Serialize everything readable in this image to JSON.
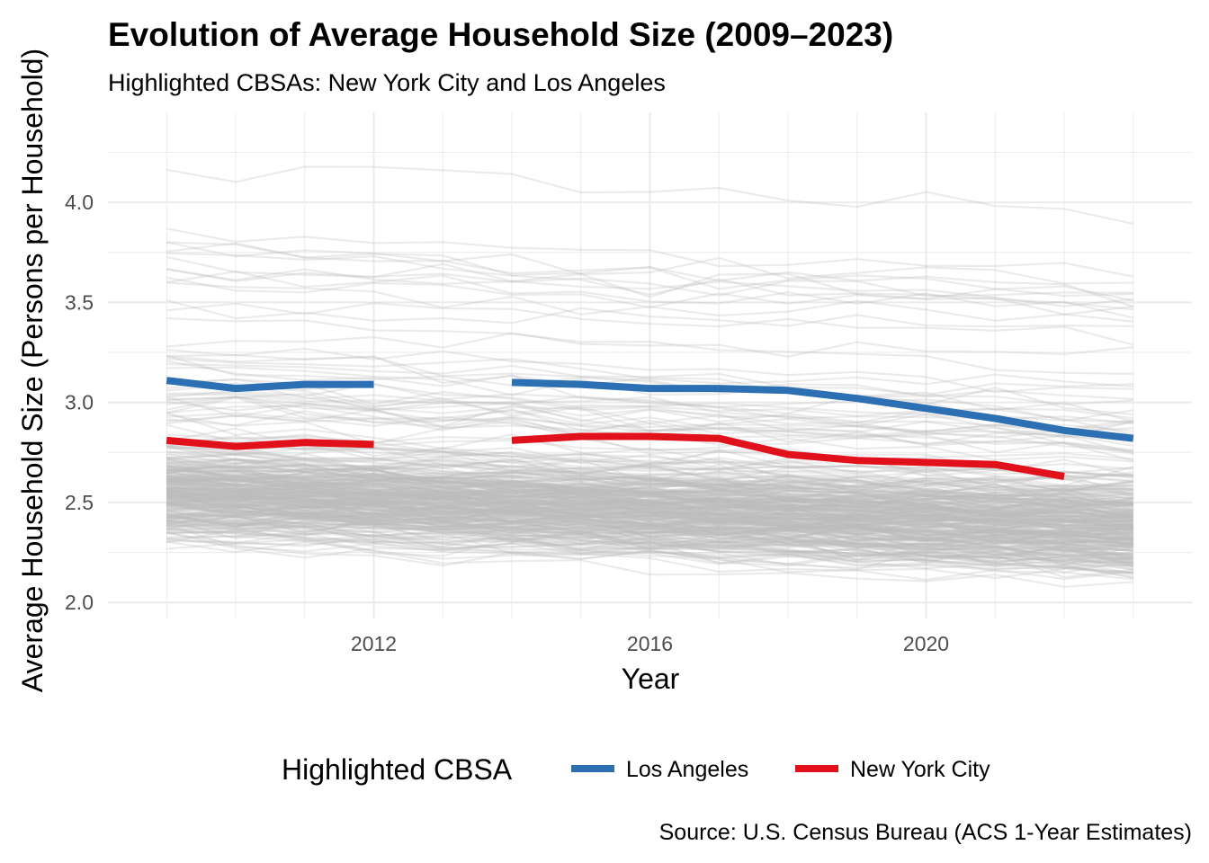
{
  "chart_data": {
    "type": "line",
    "title": "Evolution of Average Household Size (2009–2023)",
    "subtitle": "Highlighted CBSAs: New York City and Los Angeles",
    "xlabel": "Year",
    "ylabel": "Average Household Size (Persons per Household)",
    "caption": "Source: U.S. Census Bureau (ACS 1-Year Estimates)",
    "x_ticks": [
      2012,
      2016,
      2020
    ],
    "y_ticks": [
      "2.0",
      "2.5",
      "3.0",
      "3.5",
      "4.0"
    ],
    "xlim": [
      2008.15,
      2023.85
    ],
    "ylim": [
      1.92,
      4.45
    ],
    "grid": true,
    "legend": {
      "title": "Highlighted CBSA",
      "position": "bottom",
      "entries": [
        {
          "label": "Los Angeles",
          "color": "#2c6fb3"
        },
        {
          "label": "New York City",
          "color": "#e0111b"
        }
      ]
    },
    "background_series_color": "#bdbdbd",
    "background_series_description": "All other CBSAs (several hundred grey lines, mostly between about 2.2 and 3.0)",
    "series": [
      {
        "name": "Los Angeles",
        "color": "#2c6fb3",
        "x": [
          2009,
          2010,
          2011,
          2012,
          2013,
          2014,
          2015,
          2016,
          2017,
          2018,
          2019,
          2020,
          2021,
          2022,
          2023
        ],
        "y": [
          3.11,
          3.07,
          3.09,
          3.09,
          null,
          3.1,
          3.09,
          3.07,
          3.07,
          3.06,
          3.02,
          2.97,
          2.92,
          2.86,
          2.82
        ]
      },
      {
        "name": "New York City",
        "color": "#e0111b",
        "x": [
          2009,
          2010,
          2011,
          2012,
          2013,
          2014,
          2015,
          2016,
          2017,
          2018,
          2019,
          2020,
          2021,
          2022,
          2023
        ],
        "y": [
          2.81,
          2.78,
          2.8,
          2.79,
          null,
          2.81,
          2.83,
          2.83,
          2.82,
          2.74,
          2.71,
          2.7,
          2.69,
          2.63,
          null
        ]
      }
    ]
  }
}
